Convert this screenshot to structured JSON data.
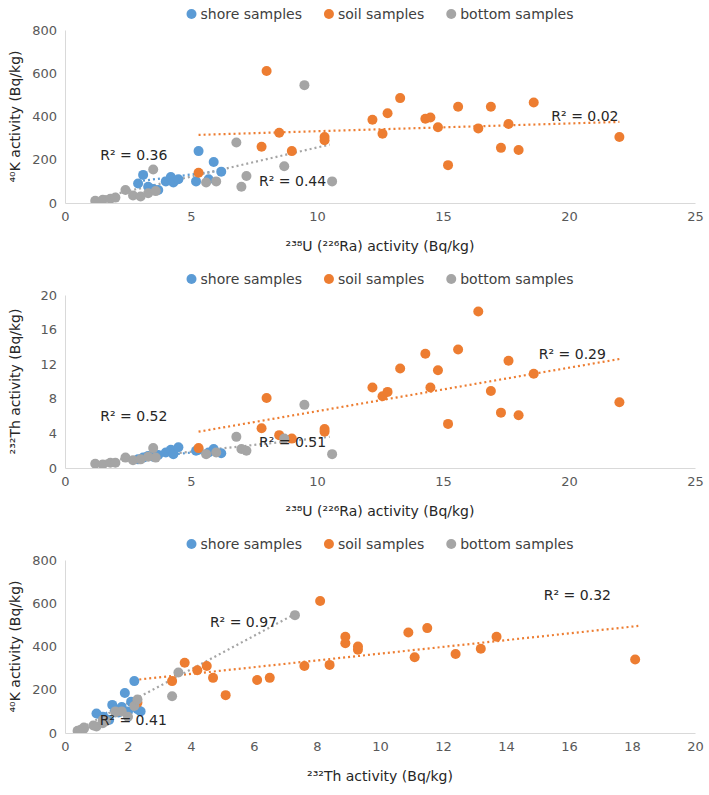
{
  "chart_data": [
    {
      "type": "scatter",
      "x_label": "²³⁸U (²²⁶Ra) activity (Bq/kg)",
      "y_label": "⁴⁰K activity (Bq/kg)",
      "xlim": [
        0,
        25
      ],
      "ylim": [
        0,
        800
      ],
      "xticks": [
        0,
        5,
        10,
        15,
        20,
        25
      ],
      "yticks": [
        0,
        200,
        400,
        600,
        800
      ],
      "grid": false,
      "legend": "top",
      "series": [
        {
          "name": "shore samples",
          "color": "#5b9bd5",
          "marker": "circle",
          "x": [
            2.9,
            3.1,
            3.3,
            3.5,
            3.7,
            4.0,
            4.2,
            4.3,
            4.5,
            5.2,
            5.3,
            5.7,
            5.9,
            6.2
          ],
          "values": [
            90,
            130,
            75,
            65,
            60,
            100,
            120,
            95,
            110,
            100,
            240,
            110,
            190,
            145
          ],
          "trendline": {
            "x": [
              2.9,
              6.2
            ],
            "values": [
              100,
              150
            ],
            "line_style": "dotted"
          }
        },
        {
          "name": "soil samples",
          "color": "#ed7d31",
          "marker": "circle",
          "x": [
            5.3,
            7.8,
            8.0,
            8.5,
            9.0,
            10.3,
            10.3,
            12.2,
            12.6,
            12.8,
            13.3,
            14.3,
            14.5,
            14.8,
            15.2,
            15.6,
            16.4,
            16.9,
            17.3,
            17.6,
            18.0,
            18.6,
            22.0
          ],
          "values": [
            140,
            260,
            610,
            325,
            240,
            305,
            290,
            385,
            320,
            415,
            485,
            390,
            395,
            350,
            175,
            445,
            345,
            445,
            255,
            365,
            245,
            465,
            305
          ],
          "trendline": {
            "x": [
              5.3,
              22.0
            ],
            "values": [
              315,
              375
            ],
            "line_style": "dotted"
          }
        },
        {
          "name": "bottom samples",
          "color": "#a5a5a5",
          "marker": "circle",
          "x": [
            1.2,
            1.5,
            1.8,
            2.0,
            2.4,
            2.7,
            3.0,
            3.3,
            3.5,
            3.6,
            5.6,
            6.0,
            6.8,
            7.0,
            7.2,
            8.7,
            9.5,
            10.6
          ],
          "values": [
            10,
            15,
            20,
            25,
            60,
            35,
            30,
            45,
            155,
            55,
            95,
            100,
            280,
            75,
            125,
            170,
            545,
            100
          ],
          "trendline": {
            "x": [
              1.2,
              10.5
            ],
            "values": [
              20,
              270
            ],
            "line_style": "dotted"
          }
        }
      ],
      "annotations": [
        {
          "text": "R² = 0.36",
          "x": 1.4,
          "y": 222
        },
        {
          "text": "R² = 0.44",
          "x": 7.7,
          "y": 102
        },
        {
          "text": "R² = 0.02",
          "x": 19.3,
          "y": 400
        }
      ]
    },
    {
      "type": "scatter",
      "x_label": "²³⁸U (²²⁶Ra) activity (Bq/kg)",
      "y_label": "²³²Th activity (Bq/kg)",
      "xlim": [
        0,
        25
      ],
      "ylim": [
        0,
        20
      ],
      "xticks": [
        0,
        5,
        10,
        15,
        20,
        25
      ],
      "yticks": [
        0,
        4,
        8,
        12,
        16,
        20
      ],
      "grid": false,
      "legend": "top",
      "series": [
        {
          "name": "shore samples",
          "color": "#5b9bd5",
          "marker": "circle",
          "x": [
            2.9,
            3.1,
            3.3,
            3.5,
            3.7,
            4.0,
            4.2,
            4.3,
            4.5,
            5.2,
            5.3,
            5.7,
            5.9,
            6.2
          ],
          "values": [
            1.0,
            1.2,
            1.4,
            1.3,
            1.5,
            1.8,
            2.1,
            1.6,
            2.4,
            2.0,
            2.1,
            1.8,
            2.2,
            1.7
          ],
          "trendline": {
            "x": [
              2.9,
              6.2
            ],
            "values": [
              1.2,
              2.1
            ],
            "line_style": "dotted"
          }
        },
        {
          "name": "soil samples",
          "color": "#ed7d31",
          "marker": "circle",
          "x": [
            5.3,
            7.8,
            8.0,
            8.5,
            9.0,
            10.3,
            10.3,
            12.2,
            12.6,
            12.8,
            13.3,
            14.3,
            14.5,
            14.8,
            15.2,
            15.6,
            16.4,
            16.9,
            17.3,
            17.6,
            18.0,
            18.6,
            22.0
          ],
          "values": [
            2.3,
            4.6,
            8.1,
            3.8,
            3.4,
            4.2,
            4.5,
            9.3,
            8.3,
            8.8,
            11.5,
            13.2,
            9.3,
            11.3,
            5.1,
            13.7,
            18.1,
            8.9,
            6.4,
            12.4,
            6.1,
            10.9,
            7.6
          ],
          "trendline": {
            "x": [
              5.3,
              22.0
            ],
            "values": [
              4.2,
              12.6
            ],
            "line_style": "dotted"
          }
        },
        {
          "name": "bottom samples",
          "color": "#a5a5a5",
          "marker": "circle",
          "x": [
            1.2,
            1.5,
            1.8,
            2.0,
            2.4,
            2.7,
            3.0,
            3.3,
            3.5,
            3.6,
            5.6,
            6.0,
            6.8,
            7.0,
            7.2,
            8.7,
            9.5,
            10.6
          ],
          "values": [
            0.5,
            0.4,
            0.6,
            0.6,
            1.2,
            0.9,
            1.0,
            1.3,
            2.3,
            1.2,
            1.6,
            1.8,
            3.6,
            2.2,
            2.0,
            3.4,
            7.3,
            1.6
          ],
          "trendline": {
            "x": [
              1.2,
              10.5
            ],
            "values": [
              0.7,
              3.6
            ],
            "line_style": "dotted"
          }
        }
      ],
      "annotations": [
        {
          "text": "R² = 0.52",
          "x": 1.4,
          "y": 6.0
        },
        {
          "text": "R² = 0.51",
          "x": 7.7,
          "y": 3.0
        },
        {
          "text": "R² = 0.29",
          "x": 18.8,
          "y": 13.2
        }
      ]
    },
    {
      "type": "scatter",
      "x_label": "²³²Th activity (Bq/kg)",
      "y_label": "⁴⁰K activity (Bq/kg)",
      "xlim": [
        0,
        20
      ],
      "ylim": [
        0,
        800
      ],
      "xticks": [
        0,
        2,
        4,
        6,
        8,
        10,
        12,
        14,
        16,
        18,
        20
      ],
      "yticks": [
        0,
        200,
        400,
        600,
        800
      ],
      "grid": false,
      "legend": "top",
      "series": [
        {
          "name": "shore samples",
          "color": "#5b9bd5",
          "marker": "circle",
          "x": [
            1.0,
            1.2,
            1.3,
            1.4,
            1.5,
            1.6,
            1.7,
            1.8,
            1.9,
            2.0,
            2.1,
            2.2,
            2.3,
            2.4
          ],
          "values": [
            90,
            75,
            65,
            60,
            130,
            110,
            95,
            120,
            185,
            100,
            145,
            240,
            110,
            100
          ],
          "trendline": {
            "x": [
              1.0,
              2.4
            ],
            "values": [
              70,
              170
            ],
            "line_style": "dotted"
          }
        },
        {
          "name": "soil samples",
          "color": "#ed7d31",
          "marker": "circle",
          "x": [
            2.3,
            3.4,
            3.8,
            4.2,
            4.5,
            4.7,
            5.1,
            6.1,
            6.5,
            7.6,
            8.1,
            8.4,
            8.9,
            8.9,
            9.3,
            9.3,
            10.9,
            11.1,
            11.5,
            12.4,
            13.2,
            13.7,
            18.1
          ],
          "values": [
            140,
            240,
            325,
            290,
            310,
            255,
            175,
            245,
            255,
            310,
            610,
            315,
            445,
            415,
            400,
            385,
            465,
            350,
            485,
            365,
            390,
            445,
            340
          ],
          "trendline": {
            "x": [
              2.2,
              18.2
            ],
            "values": [
              245,
              495
            ],
            "line_style": "dotted"
          }
        },
        {
          "name": "bottom samples",
          "color": "#a5a5a5",
          "marker": "circle",
          "x": [
            0.4,
            0.5,
            0.6,
            0.6,
            0.9,
            1.0,
            1.2,
            1.2,
            1.3,
            1.6,
            1.6,
            1.8,
            2.0,
            2.2,
            2.3,
            3.4,
            3.6,
            7.3
          ],
          "values": [
            10,
            15,
            20,
            25,
            35,
            30,
            60,
            45,
            55,
            95,
            100,
            100,
            75,
            125,
            155,
            170,
            280,
            545
          ],
          "trendline": {
            "x": [
              0.4,
              7.3
            ],
            "values": [
              15,
              550
            ],
            "line_style": "dotted"
          }
        }
      ],
      "annotations": [
        {
          "text": "R² = 0.97",
          "x": 4.6,
          "y": 515
        },
        {
          "text": "R² = 0.41",
          "x": 1.1,
          "y": 60
        },
        {
          "text": "R² = 0.32",
          "x": 15.2,
          "y": 636
        }
      ]
    }
  ]
}
